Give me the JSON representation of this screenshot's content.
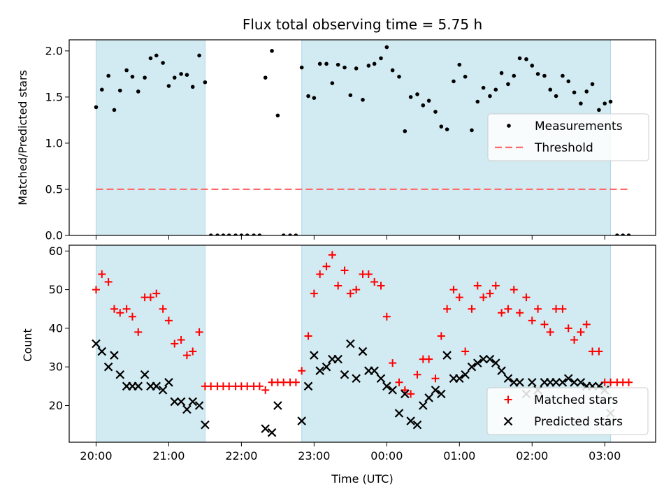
{
  "chart_data": [
    {
      "type": "scatter",
      "title": "Flux total observing time = 5.75 h",
      "xlabel": "",
      "ylabel": "Matched/Predicted stars",
      "ylim": [
        0,
        2.12
      ],
      "yticks": [
        "0.0",
        "0.5",
        "1.0",
        "1.5",
        "2.0"
      ],
      "ytick_values": [
        0,
        0.5,
        1.0,
        1.5,
        2.0
      ],
      "legend": {
        "position": "center-right",
        "entries": [
          "Measurements",
          "Threshold"
        ]
      },
      "threshold": {
        "name": "Threshold",
        "value": 0.5,
        "x_start": 0.0,
        "x_end": 7.33,
        "color": "#ff6b6b",
        "style": "dashed"
      },
      "series": [
        {
          "name": "Measurements",
          "color": "#000000",
          "marker": "dot",
          "x": [
            0.0,
            0.08,
            0.17,
            0.25,
            0.33,
            0.42,
            0.5,
            0.58,
            0.67,
            0.75,
            0.83,
            0.92,
            1.0,
            1.08,
            1.17,
            1.25,
            1.33,
            1.42,
            1.5,
            1.58,
            1.67,
            1.75,
            1.83,
            1.92,
            2.0,
            2.08,
            2.17,
            2.25,
            2.33,
            2.42,
            2.5,
            2.58,
            2.67,
            2.75,
            2.83,
            2.92,
            3.0,
            3.08,
            3.17,
            3.25,
            3.33,
            3.42,
            3.5,
            3.58,
            3.67,
            3.75,
            3.83,
            3.92,
            4.0,
            4.08,
            4.17,
            4.25,
            4.33,
            4.42,
            4.5,
            4.58,
            4.67,
            4.75,
            4.83,
            4.92,
            5.0,
            5.08,
            5.17,
            5.25,
            5.33,
            5.42,
            5.5,
            5.58,
            5.67,
            5.75,
            5.83,
            5.92,
            6.0,
            6.08,
            6.17,
            6.25,
            6.33,
            6.42,
            6.5,
            6.58,
            6.67,
            6.75,
            6.83,
            6.92,
            7.0,
            7.08,
            7.17,
            7.25,
            7.33
          ],
          "y": [
            1.39,
            1.58,
            1.73,
            1.36,
            1.57,
            1.79,
            1.72,
            1.56,
            1.71,
            1.92,
            1.95,
            1.87,
            1.62,
            1.71,
            1.75,
            1.74,
            1.61,
            1.95,
            1.66,
            0,
            0,
            0,
            0,
            0,
            0,
            0,
            0,
            0,
            1.71,
            2.0,
            1.3,
            0,
            0,
            0,
            1.82,
            1.51,
            1.49,
            1.86,
            1.86,
            1.65,
            1.85,
            1.82,
            1.52,
            1.81,
            1.47,
            1.84,
            1.86,
            1.92,
            2.04,
            1.79,
            1.72,
            1.13,
            1.5,
            1.53,
            1.41,
            1.46,
            1.34,
            1.18,
            1.15,
            1.67,
            1.85,
            1.72,
            1.14,
            1.45,
            1.6,
            1.51,
            1.58,
            1.76,
            1.64,
            1.73,
            1.92,
            1.91,
            1.84,
            1.75,
            1.73,
            1.58,
            1.51,
            1.73,
            1.67,
            1.55,
            1.43,
            1.56,
            1.64,
            1.36,
            1.43,
            1.45,
            0,
            0,
            0
          ]
        }
      ],
      "shaded_spans": [
        [
          0.0,
          1.5
        ],
        [
          2.83,
          7.08
        ]
      ],
      "shade_color": "#add8e6"
    },
    {
      "type": "scatter",
      "title": "",
      "xlabel": "Time (UTC)",
      "ylabel": "Count",
      "ylim": [
        10.5,
        61.5
      ],
      "yticks": [
        "20",
        "30",
        "40",
        "50",
        "60"
      ],
      "ytick_values": [
        20,
        30,
        40,
        50,
        60
      ],
      "legend": {
        "position": "bottom-right",
        "entries": [
          "Matched stars",
          "Predicted stars"
        ]
      },
      "xlim": [
        -0.37,
        7.7
      ],
      "xticks": [
        "20:00",
        "21:00",
        "22:00",
        "23:00",
        "00:00",
        "01:00",
        "02:00",
        "03:00"
      ],
      "xtick_values": [
        0,
        1,
        2,
        3,
        4,
        5,
        6,
        7
      ],
      "series": [
        {
          "name": "Matched stars",
          "color": "#ff0000",
          "marker": "plus",
          "x": [
            0.0,
            0.08,
            0.17,
            0.25,
            0.33,
            0.42,
            0.5,
            0.58,
            0.67,
            0.75,
            0.83,
            0.92,
            1.0,
            1.08,
            1.17,
            1.25,
            1.33,
            1.42,
            1.5,
            1.58,
            1.67,
            1.75,
            1.83,
            1.92,
            2.0,
            2.08,
            2.17,
            2.25,
            2.33,
            2.42,
            2.5,
            2.58,
            2.67,
            2.75,
            2.83,
            2.92,
            3.0,
            3.08,
            3.17,
            3.25,
            3.33,
            3.42,
            3.5,
            3.58,
            3.67,
            3.75,
            3.83,
            3.92,
            4.0,
            4.08,
            4.17,
            4.25,
            4.33,
            4.42,
            4.5,
            4.58,
            4.67,
            4.75,
            4.83,
            4.92,
            5.0,
            5.08,
            5.17,
            5.25,
            5.33,
            5.42,
            5.5,
            5.58,
            5.67,
            5.75,
            5.83,
            5.92,
            6.0,
            6.08,
            6.17,
            6.25,
            6.33,
            6.42,
            6.5,
            6.58,
            6.67,
            6.75,
            6.83,
            6.92,
            7.0,
            7.08,
            7.17,
            7.25,
            7.33
          ],
          "y": [
            50,
            54,
            52,
            45,
            44,
            45,
            43,
            39,
            48,
            48,
            49,
            45,
            42,
            36,
            37,
            33,
            34,
            39,
            25,
            25,
            25,
            25,
            25,
            25,
            25,
            25,
            25,
            25,
            24,
            26,
            26,
            26,
            26,
            26,
            29,
            38,
            49,
            54,
            56,
            59,
            51,
            55,
            49,
            50,
            54,
            54,
            52,
            51,
            43,
            31,
            26,
            24,
            23,
            28,
            32,
            32,
            27,
            38,
            45,
            50,
            48,
            34,
            45,
            51,
            48,
            49,
            51,
            44,
            45,
            50,
            44,
            48,
            42,
            45,
            41,
            39,
            45,
            45,
            40,
            37,
            39,
            41,
            34,
            34,
            26,
            26,
            26,
            26,
            26
          ]
        },
        {
          "name": "Predicted stars",
          "color": "#000000",
          "marker": "x",
          "x": [
            0.0,
            0.08,
            0.17,
            0.25,
            0.33,
            0.42,
            0.5,
            0.58,
            0.67,
            0.75,
            0.83,
            0.92,
            1.0,
            1.08,
            1.17,
            1.25,
            1.33,
            1.42,
            1.5,
            2.33,
            2.42,
            2.5,
            2.83,
            2.92,
            3.0,
            3.08,
            3.17,
            3.25,
            3.33,
            3.42,
            3.5,
            3.58,
            3.67,
            3.75,
            3.83,
            3.92,
            4.0,
            4.08,
            4.17,
            4.25,
            4.33,
            4.42,
            4.5,
            4.58,
            4.67,
            4.75,
            4.83,
            4.92,
            5.0,
            5.08,
            5.17,
            5.25,
            5.33,
            5.42,
            5.5,
            5.58,
            5.67,
            5.75,
            5.83,
            5.92,
            6.0,
            6.08,
            6.17,
            6.25,
            6.33,
            6.42,
            6.5,
            6.58,
            6.67,
            6.75,
            6.83,
            6.92,
            7.0,
            7.08
          ],
          "y": [
            36,
            34,
            30,
            33,
            28,
            25,
            25,
            25,
            28,
            25,
            25,
            24,
            26,
            21,
            21,
            19,
            21,
            20,
            15,
            14,
            13,
            20,
            16,
            25,
            33,
            29,
            30,
            32,
            32,
            28,
            36,
            27,
            34,
            29,
            29,
            27,
            25,
            24,
            18,
            23,
            16,
            15,
            20,
            22,
            24,
            23,
            33,
            27,
            27,
            28,
            30,
            31,
            32,
            32,
            31,
            29,
            27,
            26,
            26,
            23,
            26,
            24,
            26,
            26,
            26,
            26,
            27,
            26,
            26,
            25,
            25,
            25,
            24,
            18
          ]
        }
      ],
      "shaded_spans": [
        [
          0.0,
          1.5
        ],
        [
          2.83,
          7.08
        ]
      ],
      "shade_color": "#add8e6"
    }
  ]
}
